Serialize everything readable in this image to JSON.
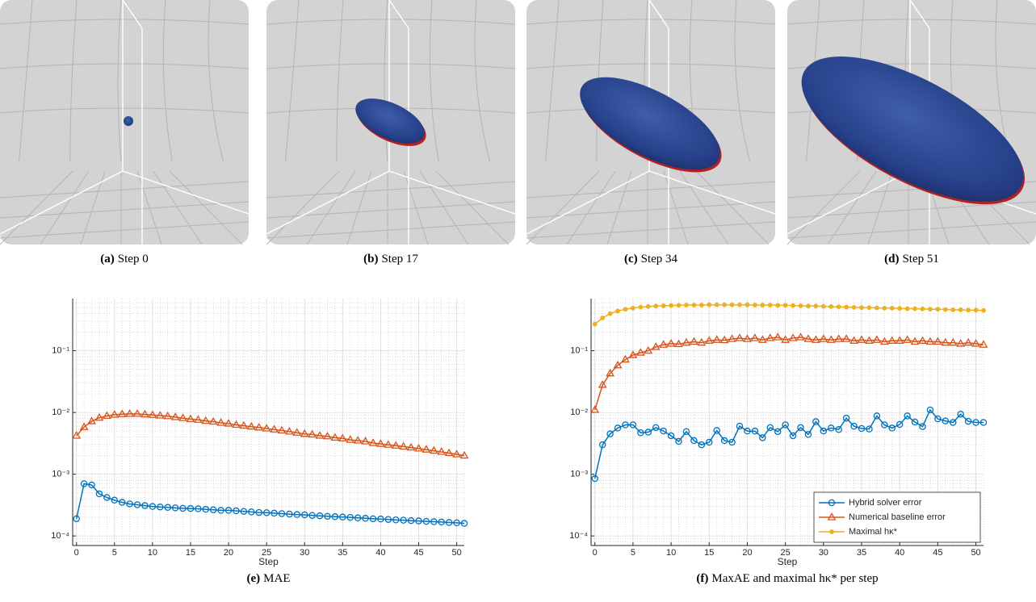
{
  "panels": [
    {
      "label": "(a)",
      "caption": "Step 0"
    },
    {
      "label": "(b)",
      "caption": "Step 17"
    },
    {
      "label": "(c)",
      "caption": "Step 34"
    },
    {
      "label": "(d)",
      "caption": "Step 51"
    }
  ],
  "chart_data": [
    {
      "type": "line",
      "subfigure": "(e)",
      "caption": "MAE",
      "x_label": "Step",
      "log_y": true,
      "grid": true,
      "minor_grid": true,
      "x": [
        0,
        1,
        2,
        3,
        4,
        5,
        6,
        7,
        8,
        9,
        10,
        11,
        12,
        13,
        14,
        15,
        16,
        17,
        18,
        19,
        20,
        21,
        22,
        23,
        24,
        25,
        26,
        27,
        28,
        29,
        30,
        31,
        32,
        33,
        34,
        35,
        36,
        37,
        38,
        39,
        40,
        41,
        42,
        43,
        44,
        45,
        46,
        47,
        48,
        49,
        50,
        51
      ],
      "xlim": [
        -0.5,
        51
      ],
      "xticks": [
        0,
        5,
        10,
        15,
        20,
        25,
        30,
        35,
        40,
        45,
        50
      ],
      "ylim": [
        7e-05,
        0.7
      ],
      "yticks": [
        {
          "value": 0.0001,
          "label": "10⁻⁴"
        },
        {
          "value": 0.001,
          "label": "10⁻³"
        },
        {
          "value": 0.01,
          "label": "10⁻²"
        },
        {
          "value": 0.1,
          "label": "10⁻¹"
        }
      ],
      "series": [
        {
          "name": "Hybrid solver error",
          "color": "#0072bd",
          "marker": "circle",
          "values": [
            0.00019,
            0.0007,
            0.00067,
            0.00048,
            0.00042,
            0.00038,
            0.00035,
            0.00033,
            0.00032,
            0.00031,
            0.0003,
            0.000295,
            0.00029,
            0.000285,
            0.00028,
            0.000278,
            0.000275,
            0.00027,
            0.000265,
            0.00026,
            0.00026,
            0.000255,
            0.00025,
            0.000245,
            0.00024,
            0.000238,
            0.000234,
            0.00023,
            0.000226,
            0.000222,
            0.00022,
            0.000215,
            0.000212,
            0.000208,
            0.000205,
            0.000202,
            0.0002,
            0.000196,
            0.000193,
            0.00019,
            0.000188,
            0.000185,
            0.000182,
            0.00018,
            0.000177,
            0.000175,
            0.000172,
            0.00017,
            0.000168,
            0.000165,
            0.000163,
            0.00016
          ]
        },
        {
          "name": "Numerical baseline error",
          "color": "#d95319",
          "marker": "triangle",
          "values": [
            0.0042,
            0.0058,
            0.0072,
            0.0082,
            0.0088,
            0.0092,
            0.0094,
            0.0095,
            0.0095,
            0.0093,
            0.0091,
            0.0089,
            0.0087,
            0.0084,
            0.0081,
            0.0078,
            0.0076,
            0.0073,
            0.0071,
            0.0068,
            0.0066,
            0.0063,
            0.0061,
            0.0059,
            0.0057,
            0.0055,
            0.0053,
            0.0051,
            0.0049,
            0.0047,
            0.0045,
            0.0044,
            0.0042,
            0.0041,
            0.0039,
            0.0038,
            0.0036,
            0.0035,
            0.0034,
            0.0032,
            0.0031,
            0.003,
            0.0029,
            0.0028,
            0.0027,
            0.0026,
            0.0025,
            0.0024,
            0.0023,
            0.0022,
            0.0021,
            0.002
          ]
        }
      ]
    },
    {
      "type": "line",
      "subfigure": "(f)",
      "caption": "MaxAE and maximal hκ* per step",
      "x_label": "Step",
      "log_y": true,
      "grid": true,
      "minor_grid": true,
      "legend": "lower right",
      "x": [
        0,
        1,
        2,
        3,
        4,
        5,
        6,
        7,
        8,
        9,
        10,
        11,
        12,
        13,
        14,
        15,
        16,
        17,
        18,
        19,
        20,
        21,
        22,
        23,
        24,
        25,
        26,
        27,
        28,
        29,
        30,
        31,
        32,
        33,
        34,
        35,
        36,
        37,
        38,
        39,
        40,
        41,
        42,
        43,
        44,
        45,
        46,
        47,
        48,
        49,
        50,
        51
      ],
      "xlim": [
        -0.5,
        51
      ],
      "xticks": [
        0,
        5,
        10,
        15,
        20,
        25,
        30,
        35,
        40,
        45,
        50
      ],
      "ylim": [
        7e-05,
        0.7
      ],
      "yticks": [
        {
          "value": 0.0001,
          "label": "10⁻⁴"
        },
        {
          "value": 0.001,
          "label": "10⁻³"
        },
        {
          "value": 0.01,
          "label": "10⁻²"
        },
        {
          "value": 0.1,
          "label": "10⁻¹"
        }
      ],
      "series": [
        {
          "name": "Hybrid solver error",
          "color": "#0072bd",
          "marker": "circle",
          "values": [
            0.00085,
            0.003,
            0.0045,
            0.0056,
            0.0063,
            0.0063,
            0.0047,
            0.0048,
            0.0057,
            0.005,
            0.0042,
            0.0034,
            0.0049,
            0.0035,
            0.003,
            0.0033,
            0.0051,
            0.0035,
            0.0033,
            0.006,
            0.005,
            0.005,
            0.0039,
            0.0057,
            0.0049,
            0.0063,
            0.0042,
            0.0057,
            0.0044,
            0.0071,
            0.005,
            0.0056,
            0.0053,
            0.0081,
            0.006,
            0.0055,
            0.0054,
            0.0088,
            0.0063,
            0.0056,
            0.0064,
            0.0088,
            0.007,
            0.0059,
            0.011,
            0.0079,
            0.0073,
            0.0069,
            0.0094,
            0.0072,
            0.0069,
            0.0069
          ]
        },
        {
          "name": "Numerical baseline error",
          "color": "#d95319",
          "marker": "triangle",
          "values": [
            0.011,
            0.028,
            0.043,
            0.058,
            0.072,
            0.085,
            0.093,
            0.1,
            0.115,
            0.125,
            0.13,
            0.128,
            0.135,
            0.14,
            0.135,
            0.145,
            0.15,
            0.148,
            0.155,
            0.16,
            0.155,
            0.16,
            0.15,
            0.16,
            0.165,
            0.15,
            0.16,
            0.165,
            0.155,
            0.15,
            0.155,
            0.15,
            0.155,
            0.155,
            0.145,
            0.15,
            0.145,
            0.15,
            0.14,
            0.145,
            0.145,
            0.15,
            0.14,
            0.145,
            0.14,
            0.14,
            0.135,
            0.135,
            0.13,
            0.135,
            0.13,
            0.125
          ]
        },
        {
          "name": "Maximal hκ*",
          "color": "#edb120",
          "marker": "dot",
          "values": [
            0.27,
            0.34,
            0.4,
            0.44,
            0.47,
            0.49,
            0.51,
            0.52,
            0.53,
            0.535,
            0.54,
            0.545,
            0.55,
            0.55,
            0.55,
            0.555,
            0.555,
            0.555,
            0.555,
            0.555,
            0.555,
            0.55,
            0.55,
            0.55,
            0.545,
            0.545,
            0.54,
            0.535,
            0.53,
            0.53,
            0.525,
            0.52,
            0.515,
            0.51,
            0.505,
            0.5,
            0.5,
            0.495,
            0.49,
            0.49,
            0.485,
            0.48,
            0.48,
            0.475,
            0.47,
            0.47,
            0.465,
            0.46,
            0.46,
            0.455,
            0.455,
            0.45
          ]
        }
      ]
    }
  ]
}
